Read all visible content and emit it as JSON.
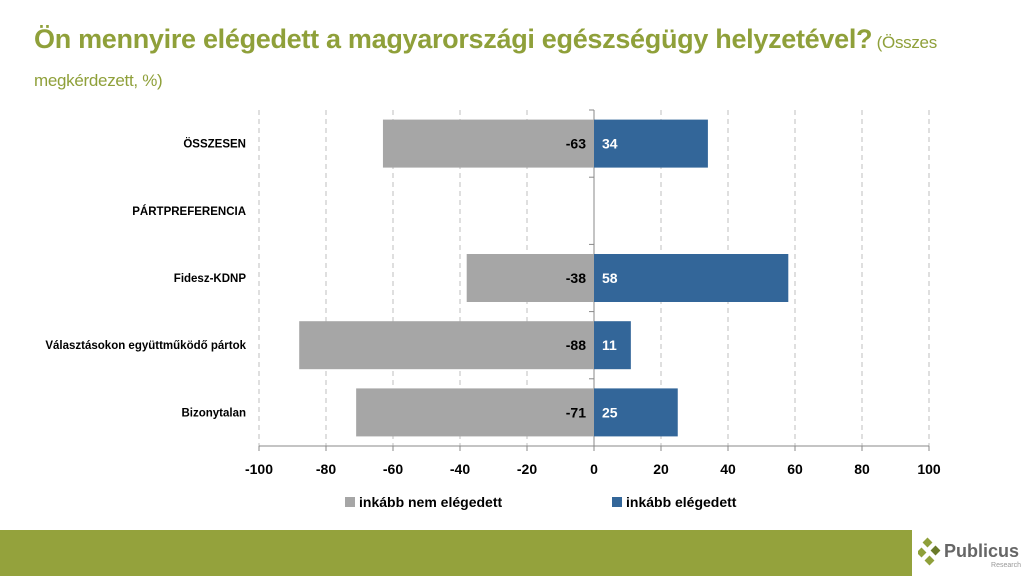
{
  "title": {
    "main": "Ön mennyire elégedett a magyarországi egészségügy helyzetével?",
    "sub": " (Összes megkérdezett, %)"
  },
  "logo": {
    "name": "Publicus",
    "sub": "Research"
  },
  "colors": {
    "neg": "#a6a6a6",
    "pos": "#336699",
    "title": "#8fa03a",
    "footer": "#94a23c"
  },
  "chart_data": {
    "type": "bar",
    "orientation": "horizontal-diverging",
    "categories": [
      "ÖSSZESEN",
      "PÁRTPREFERENCIA",
      "Fidesz-KDNP",
      "Választásokon együttműködő pártok",
      "Bizonytalan"
    ],
    "series": [
      {
        "name": "inkább nem elégedett",
        "values": [
          -63,
          null,
          -38,
          -88,
          -71
        ]
      },
      {
        "name": "inkább elégedett",
        "values": [
          34,
          null,
          58,
          11,
          25
        ]
      }
    ],
    "xlim": [
      -100,
      100
    ],
    "xticks": [
      -100,
      -80,
      -60,
      -40,
      -20,
      0,
      20,
      40,
      60,
      80,
      100
    ],
    "grid": true,
    "legend": "bottom"
  }
}
